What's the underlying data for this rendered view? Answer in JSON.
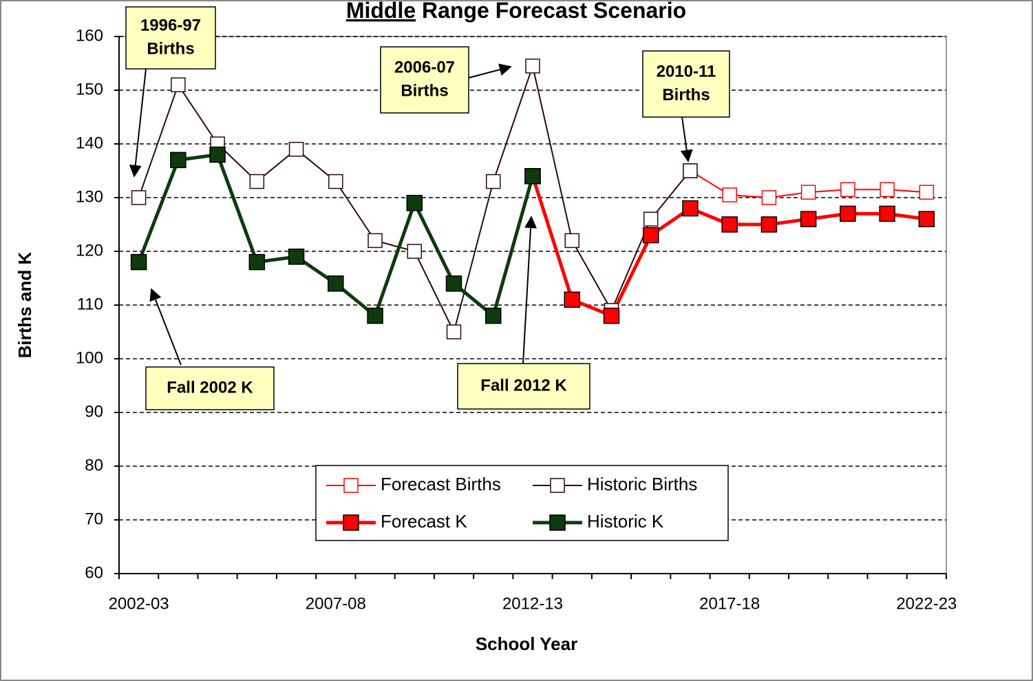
{
  "chart_data": {
    "type": "line",
    "title": "Middle Range Forecast Scenario",
    "x_label": "School Year",
    "y_label": "Births and K",
    "categories": [
      "2002-03",
      null,
      null,
      null,
      null,
      "2007-08",
      null,
      null,
      null,
      null,
      "2012-13",
      null,
      null,
      null,
      null,
      "2017-18",
      null,
      null,
      null,
      null,
      "2022-23"
    ],
    "ylim": [
      60,
      160
    ],
    "yticks": [
      60,
      70,
      80,
      90,
      100,
      110,
      120,
      130,
      140,
      150,
      160
    ],
    "grid": true,
    "series": [
      {
        "name": "Forecast Births",
        "color": "#ff0000",
        "marker": "hollow",
        "values": [
          null,
          null,
          null,
          null,
          null,
          null,
          null,
          null,
          null,
          null,
          null,
          null,
          null,
          null,
          135,
          130.5,
          130,
          131,
          131.5,
          131.5,
          131
        ]
      },
      {
        "name": "Historic Births",
        "color": "#2a0a0a",
        "marker": "hollow",
        "values": [
          130,
          151,
          140,
          133,
          139,
          133,
          122,
          120,
          105,
          133,
          154.5,
          122,
          109,
          126,
          135,
          null,
          null,
          null,
          null,
          null,
          null
        ]
      },
      {
        "name": "Forecast K",
        "color": "#ff0000",
        "marker": "filled",
        "values": [
          null,
          null,
          null,
          null,
          null,
          null,
          null,
          null,
          null,
          null,
          134,
          111,
          108,
          123,
          128,
          125,
          125,
          126,
          127,
          127,
          126
        ]
      },
      {
        "name": "Historic K",
        "color": "#0d3b0d",
        "marker": "filled",
        "values": [
          118,
          137,
          138,
          118,
          119,
          114,
          108,
          129,
          114,
          108,
          134,
          null,
          null,
          null,
          null,
          null,
          null,
          null,
          null,
          null,
          null
        ]
      }
    ],
    "annotations": [
      {
        "lines": [
          "1996-97",
          "Births"
        ]
      },
      {
        "lines": [
          "2006-07",
          "Births"
        ]
      },
      {
        "lines": [
          "2010-11",
          "Births"
        ]
      },
      {
        "lines": [
          "Fall 2002 K"
        ]
      },
      {
        "lines": [
          "Fall 2012 K"
        ]
      }
    ]
  }
}
